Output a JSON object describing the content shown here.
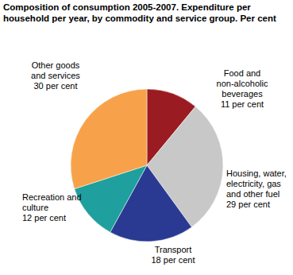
{
  "chart_data": {
    "type": "pie",
    "title": "Composition of consumption 2005-2007. Expenditure per household per year, by commodity and service group. Per cent",
    "categories": [
      "Food and non-alcoholic beverages",
      "Housing, water, electricity, gas and other fuel",
      "Transport",
      "Recreation and culture",
      "Other goods and services"
    ],
    "values": [
      11,
      29,
      18,
      12,
      30
    ],
    "value_labels": [
      "11 per cent",
      "29 per cent",
      "18 per cent",
      "12 per cent",
      "30 per cent"
    ],
    "colors": [
      "#9b1b22",
      "#c8c8c8",
      "#2a3a92",
      "#1f9f9d",
      "#f7a24b"
    ],
    "data_labels": true
  }
}
